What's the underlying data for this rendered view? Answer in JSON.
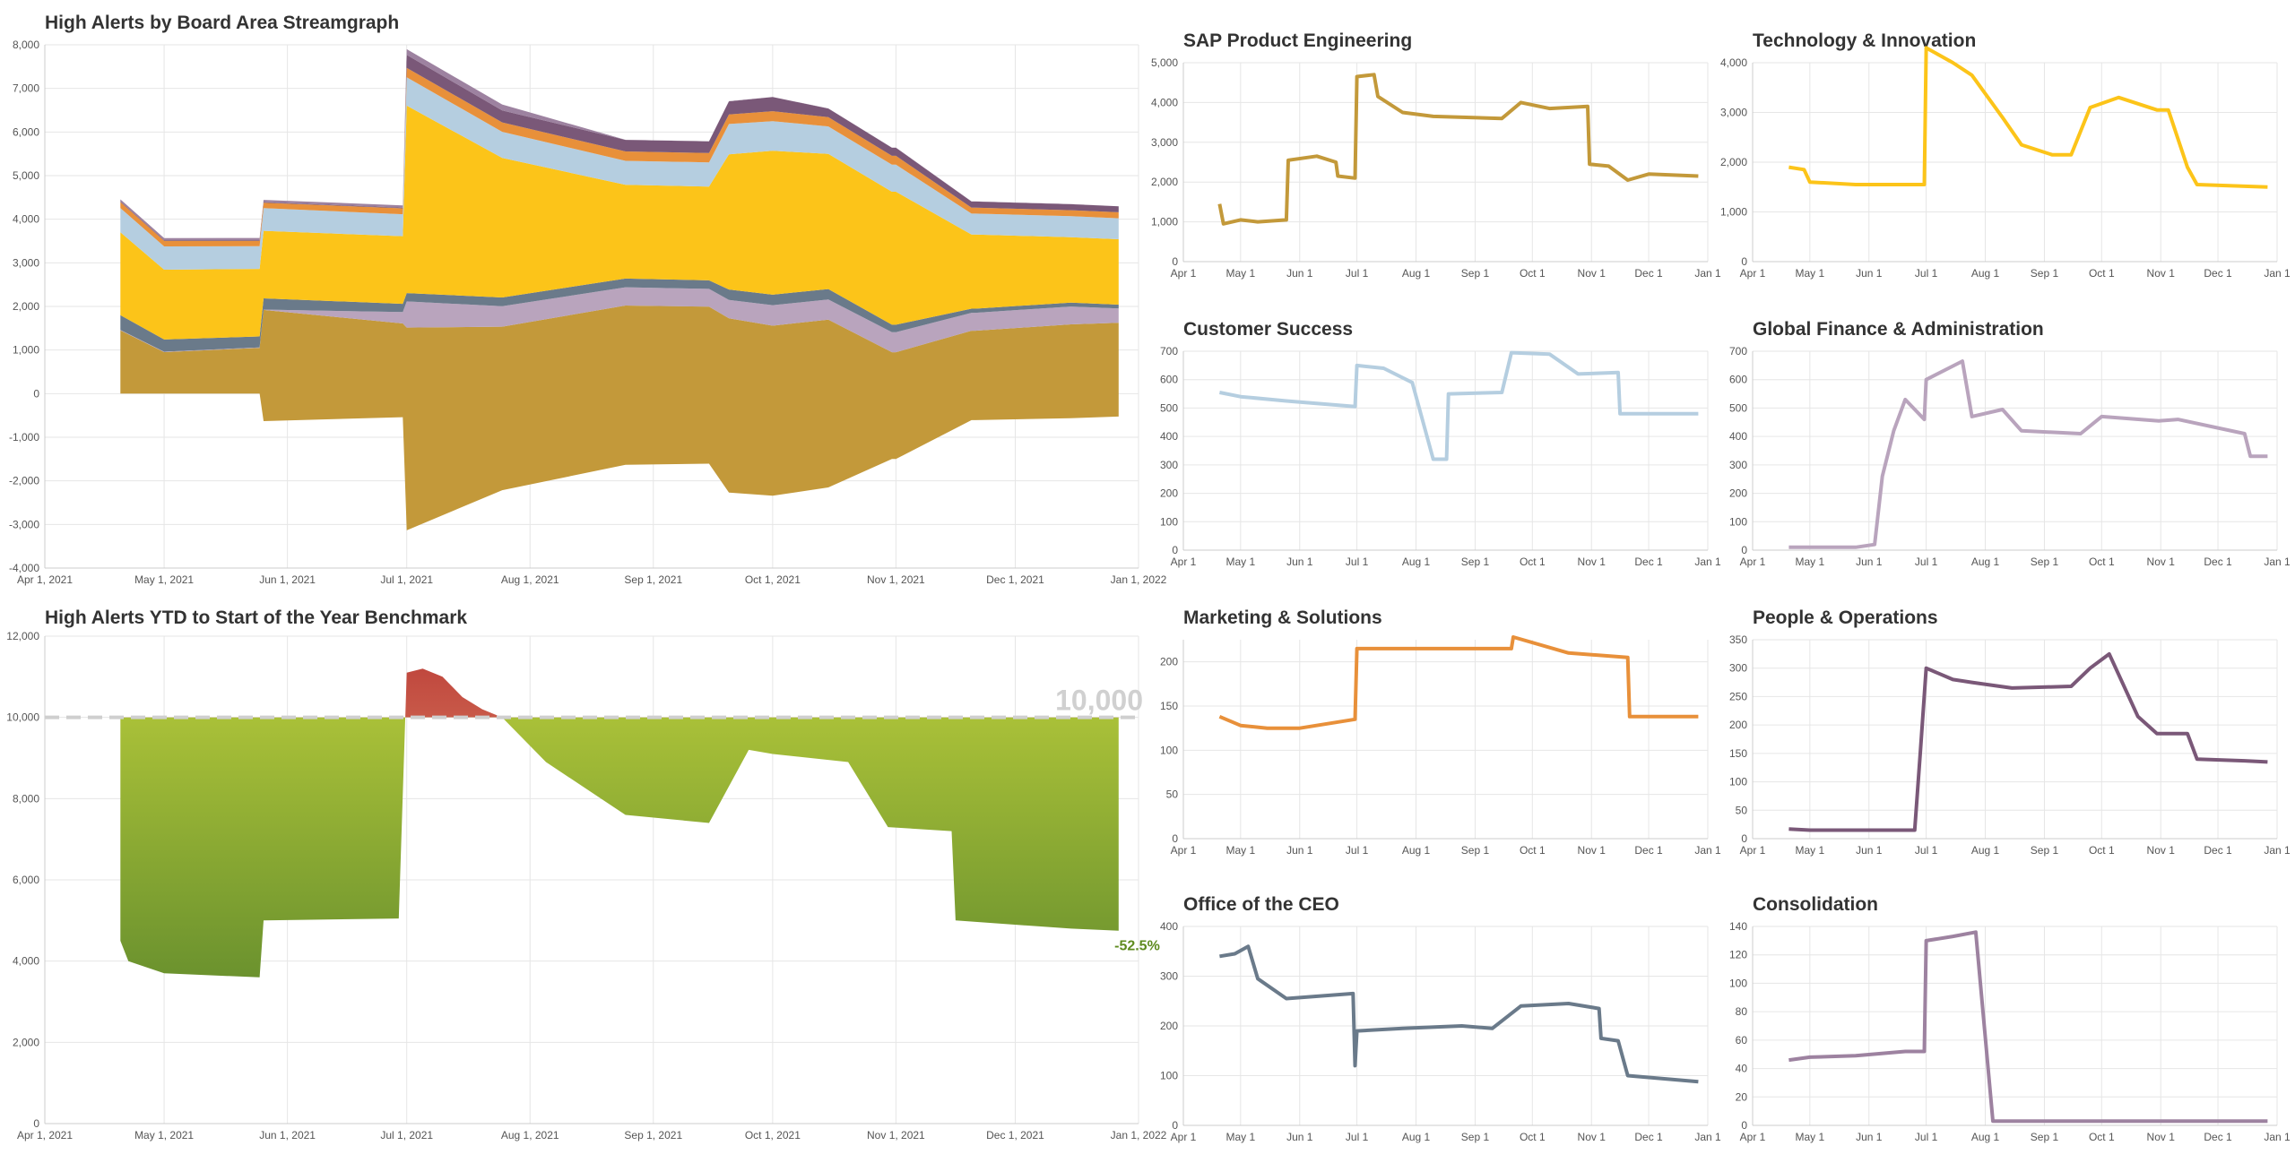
{
  "chart_data": [
    {
      "id": "stream",
      "type": "area",
      "title": "High Alerts by Board Area Streamgraph",
      "x_ticks": [
        "Apr 1, 2021",
        "May 1, 2021",
        "Jun 1, 2021",
        "Jul 1, 2021",
        "Aug 1, 2021",
        "Sep 1, 2021",
        "Oct 1, 2021",
        "Nov 1, 2021",
        "Dec 1, 2021",
        "Jan 1, 2022"
      ],
      "y_ticks": [
        "8,000",
        "7,000",
        "6,000",
        "5,000",
        "4,000",
        "3,000",
        "2,000",
        "1,000",
        "0",
        "-1,000",
        "-2,000",
        "-3,000",
        "-4,000"
      ],
      "ylim": [
        -4000,
        8000
      ],
      "grid": true,
      "legend": "none",
      "x": [
        "2021-04-20",
        "2021-05-01",
        "2021-05-25",
        "2021-05-26",
        "2021-06-30",
        "2021-07-01",
        "2021-07-25",
        "2021-08-25",
        "2021-09-15",
        "2021-09-20",
        "2021-10-01",
        "2021-10-15",
        "2021-10-31",
        "2021-11-01",
        "2021-11-20",
        "2021-11-21",
        "2021-12-15",
        "2021-12-27"
      ],
      "series": [
        {
          "color": "#c3993a",
          "values": [
            1450,
            950,
            1050,
            2550,
            2150,
            4650,
            3750,
            3650,
            3600,
            4000,
            3900,
            3850,
            2450,
            2450,
            2050,
            2050,
            2150,
            2150
          ]
        },
        {
          "color": "#b9a4bd",
          "values": [
            10,
            10,
            10,
            10,
            260,
            600,
            470,
            420,
            410,
            420,
            470,
            460,
            460,
            460,
            410,
            410,
            410,
            330
          ]
        },
        {
          "color": "#6a7a8a",
          "values": [
            340,
            280,
            250,
            255,
            190,
            190,
            200,
            200,
            195,
            240,
            240,
            240,
            170,
            170,
            95,
            95,
            90,
            88
          ]
        },
        {
          "color": "#fcc419",
          "values": [
            1900,
            1600,
            1550,
            1550,
            1550,
            4300,
            3200,
            2150,
            2150,
            3100,
            3300,
            3100,
            3050,
            3050,
            1700,
            1700,
            1500,
            1500
          ]
        },
        {
          "color": "#b5cee0",
          "values": [
            555,
            535,
            520,
            520,
            505,
            650,
            600,
            550,
            555,
            695,
            680,
            630,
            620,
            620,
            480,
            480,
            480,
            480
          ]
        },
        {
          "color": "#e8903a",
          "values": [
            138,
            128,
            125,
            125,
            135,
            215,
            215,
            215,
            215,
            220,
            228,
            210,
            205,
            205,
            138,
            138,
            138,
            138
          ]
        },
        {
          "color": "#7a5878",
          "values": [
            17,
            15,
            15,
            15,
            15,
            300,
            275,
            265,
            268,
            300,
            325,
            200,
            185,
            185,
            140,
            140,
            137,
            135
          ]
        },
        {
          "color": "#9d82a0",
          "values": [
            46,
            48,
            49,
            49,
            52,
            130,
            136,
            3,
            3,
            3,
            3,
            3,
            3,
            3,
            3,
            3,
            3,
            3
          ]
        }
      ]
    },
    {
      "id": "benchmark",
      "type": "area",
      "title": "High Alerts YTD to Start of the Year Benchmark",
      "x_ticks": [
        "Apr 1, 2021",
        "May 1, 2021",
        "Jun 1, 2021",
        "Jul 1, 2021",
        "Aug 1, 2021",
        "Sep 1, 2021",
        "Oct 1, 2021",
        "Nov 1, 2021",
        "Dec 1, 2021",
        "Jan 1, 2022"
      ],
      "y_ticks": [
        "12,000",
        "10,000",
        "8,000",
        "6,000",
        "4,000",
        "2,000",
        "0"
      ],
      "ylim": [
        0,
        12000
      ],
      "baseline": 10000,
      "baseline_label": "10,000",
      "end_label": "-52.5%",
      "grid": true,
      "x": [
        "2021-04-20",
        "2021-04-22",
        "2021-05-01",
        "2021-05-25",
        "2021-05-26",
        "2021-06-29",
        "2021-07-01",
        "2021-07-05",
        "2021-07-10",
        "2021-07-15",
        "2021-07-20",
        "2021-07-25",
        "2021-08-05",
        "2021-08-25",
        "2021-09-15",
        "2021-09-25",
        "2021-10-01",
        "2021-10-20",
        "2021-10-30",
        "2021-11-15",
        "2021-11-16",
        "2021-12-15",
        "2021-12-27"
      ],
      "values": [
        4500,
        4000,
        3700,
        3600,
        5000,
        5050,
        11100,
        11200,
        11000,
        10500,
        10200,
        10000,
        8900,
        7600,
        7400,
        9200,
        9100,
        8900,
        7300,
        7200,
        5000,
        4800,
        4750
      ]
    },
    {
      "id": "m1",
      "type": "line",
      "title": "SAP Product Engineering",
      "color": "#c3993a",
      "ylim": [
        0,
        5000
      ],
      "y_ticks": [
        "5,000",
        "4,000",
        "3,000",
        "2,000",
        "1,000",
        "0"
      ],
      "x_ticks": [
        "Apr 1",
        "May 1",
        "Jun 1",
        "Jul 1",
        "Aug 1",
        "Sep 1",
        "Oct 1",
        "Nov 1",
        "Dec 1",
        "Jan 1"
      ],
      "x": [
        "2021-04-20",
        "2021-04-22",
        "2021-05-01",
        "2021-05-10",
        "2021-05-25",
        "2021-05-26",
        "2021-06-10",
        "2021-06-20",
        "2021-06-21",
        "2021-06-30",
        "2021-07-01",
        "2021-07-10",
        "2021-07-12",
        "2021-07-25",
        "2021-08-10",
        "2021-09-15",
        "2021-09-25",
        "2021-10-10",
        "2021-10-30",
        "2021-10-31",
        "2021-11-10",
        "2021-11-20",
        "2021-12-01",
        "2021-12-27"
      ],
      "values": [
        1450,
        950,
        1050,
        1000,
        1050,
        2550,
        2650,
        2500,
        2150,
        2100,
        4650,
        4700,
        4150,
        3750,
        3650,
        3600,
        4000,
        3850,
        3900,
        2450,
        2400,
        2050,
        2200,
        2150
      ]
    },
    {
      "id": "m2",
      "type": "line",
      "title": "Technology & Innovation",
      "color": "#fcc419",
      "ylim": [
        0,
        4000
      ],
      "y_ticks": [
        "4,000",
        "3,000",
        "2,000",
        "1,000",
        "0"
      ],
      "x_ticks": [
        "Apr 1",
        "May 1",
        "Jun 1",
        "Jul 1",
        "Aug 1",
        "Sep 1",
        "Oct 1",
        "Nov 1",
        "Dec 1",
        "Jan 1"
      ],
      "x": [
        "2021-04-20",
        "2021-04-28",
        "2021-05-01",
        "2021-05-25",
        "2021-06-30",
        "2021-07-01",
        "2021-07-15",
        "2021-07-25",
        "2021-08-10",
        "2021-08-20",
        "2021-09-05",
        "2021-09-15",
        "2021-09-25",
        "2021-10-10",
        "2021-10-30",
        "2021-11-05",
        "2021-11-15",
        "2021-11-20",
        "2021-12-27"
      ],
      "values": [
        1900,
        1850,
        1600,
        1550,
        1550,
        4300,
        4000,
        3750,
        2900,
        2350,
        2150,
        2150,
        3100,
        3300,
        3050,
        3050,
        1900,
        1550,
        1500
      ]
    },
    {
      "id": "m3",
      "type": "line",
      "title": "Customer Success",
      "color": "#b5cee0",
      "ylim": [
        0,
        700
      ],
      "y_ticks": [
        "700",
        "600",
        "500",
        "400",
        "300",
        "200",
        "100",
        "0"
      ],
      "x_ticks": [
        "Apr 1",
        "May 1",
        "Jun 1",
        "Jul 1",
        "Aug 1",
        "Sep 1",
        "Oct 1",
        "Nov 1",
        "Dec 1",
        "Jan 1"
      ],
      "x": [
        "2021-04-20",
        "2021-05-01",
        "2021-05-25",
        "2021-06-30",
        "2021-07-01",
        "2021-07-15",
        "2021-07-30",
        "2021-08-10",
        "2021-08-17",
        "2021-08-18",
        "2021-09-15",
        "2021-09-20",
        "2021-10-10",
        "2021-10-25",
        "2021-11-15",
        "2021-11-16",
        "2021-12-27"
      ],
      "values": [
        555,
        540,
        525,
        505,
        650,
        640,
        590,
        320,
        320,
        550,
        555,
        695,
        690,
        620,
        625,
        480,
        480
      ]
    },
    {
      "id": "m4",
      "type": "line",
      "title": "Global Finance & Administration",
      "color": "#b9a4bd",
      "ylim": [
        0,
        700
      ],
      "y_ticks": [
        "700",
        "600",
        "500",
        "400",
        "300",
        "200",
        "100",
        "0"
      ],
      "x_ticks": [
        "Apr 1",
        "May 1",
        "Jun 1",
        "Jul 1",
        "Aug 1",
        "Sep 1",
        "Oct 1",
        "Nov 1",
        "Dec 1",
        "Jan 1"
      ],
      "x": [
        "2021-04-20",
        "2021-05-01",
        "2021-05-25",
        "2021-06-04",
        "2021-06-08",
        "2021-06-14",
        "2021-06-20",
        "2021-06-30",
        "2021-07-01",
        "2021-07-20",
        "2021-07-25",
        "2021-08-10",
        "2021-08-20",
        "2021-09-20",
        "2021-10-01",
        "2021-10-31",
        "2021-11-10",
        "2021-12-15",
        "2021-12-18",
        "2021-12-27"
      ],
      "values": [
        10,
        10,
        10,
        20,
        260,
        420,
        530,
        460,
        600,
        665,
        470,
        495,
        420,
        410,
        470,
        455,
        460,
        410,
        330,
        330
      ]
    },
    {
      "id": "m5",
      "type": "line",
      "title": "Marketing & Solutions",
      "color": "#e8903a",
      "ylim": [
        0,
        225
      ],
      "y_ticks": [
        "200",
        "150",
        "100",
        "50",
        "0"
      ],
      "x_ticks": [
        "Apr 1",
        "May 1",
        "Jun 1",
        "Jul 1",
        "Aug 1",
        "Sep 1",
        "Oct 1",
        "Nov 1",
        "Dec 1",
        "Jan 1"
      ],
      "x": [
        "2021-04-20",
        "2021-05-01",
        "2021-05-15",
        "2021-06-01",
        "2021-06-30",
        "2021-07-01",
        "2021-08-10",
        "2021-09-20",
        "2021-09-21",
        "2021-10-20",
        "2021-11-20",
        "2021-11-21",
        "2021-12-27"
      ],
      "values": [
        138,
        128,
        125,
        125,
        135,
        215,
        215,
        215,
        228,
        210,
        205,
        138,
        138
      ]
    },
    {
      "id": "m6",
      "type": "line",
      "title": "People & Operations",
      "color": "#7a5878",
      "ylim": [
        0,
        350
      ],
      "y_ticks": [
        "350",
        "300",
        "250",
        "200",
        "150",
        "100",
        "50",
        "0"
      ],
      "x_ticks": [
        "Apr 1",
        "May 1",
        "Jun 1",
        "Jul 1",
        "Aug 1",
        "Sep 1",
        "Oct 1",
        "Nov 1",
        "Dec 1",
        "Jan 1"
      ],
      "x": [
        "2021-04-20",
        "2021-05-01",
        "2021-06-25",
        "2021-06-28",
        "2021-07-01",
        "2021-07-15",
        "2021-07-25",
        "2021-08-15",
        "2021-09-15",
        "2021-09-25",
        "2021-10-05",
        "2021-10-20",
        "2021-10-30",
        "2021-11-15",
        "2021-11-20",
        "2021-12-15",
        "2021-12-27"
      ],
      "values": [
        17,
        15,
        15,
        155,
        300,
        280,
        275,
        265,
        268,
        300,
        325,
        215,
        185,
        185,
        140,
        137,
        135
      ]
    },
    {
      "id": "m7",
      "type": "line",
      "title": "Office of the CEO",
      "color": "#6a7a8a",
      "ylim": [
        0,
        400
      ],
      "y_ticks": [
        "400",
        "300",
        "200",
        "100",
        "0"
      ],
      "x_ticks": [
        "Apr 1",
        "May 1",
        "Jun 1",
        "Jul 1",
        "Aug 1",
        "Sep 1",
        "Oct 1",
        "Nov 1",
        "Dec 1",
        "Jan 1"
      ],
      "x": [
        "2021-04-20",
        "2021-04-28",
        "2021-05-05",
        "2021-05-10",
        "2021-05-25",
        "2021-06-29",
        "2021-06-30",
        "2021-07-01",
        "2021-07-25",
        "2021-08-25",
        "2021-09-10",
        "2021-09-25",
        "2021-10-20",
        "2021-11-05",
        "2021-11-06",
        "2021-11-15",
        "2021-11-20",
        "2021-12-27"
      ],
      "values": [
        340,
        345,
        360,
        295,
        255,
        265,
        120,
        190,
        195,
        200,
        195,
        240,
        245,
        235,
        175,
        170,
        100,
        88
      ]
    },
    {
      "id": "m8",
      "type": "line",
      "title": "Consolidation",
      "color": "#9d82a0",
      "ylim": [
        0,
        140
      ],
      "y_ticks": [
        "140",
        "120",
        "100",
        "80",
        "60",
        "40",
        "20",
        "0"
      ],
      "x_ticks": [
        "Apr 1",
        "May 1",
        "Jun 1",
        "Jul 1",
        "Aug 1",
        "Sep 1",
        "Oct 1",
        "Nov 1",
        "Dec 1",
        "Jan 1"
      ],
      "x": [
        "2021-04-20",
        "2021-05-01",
        "2021-05-25",
        "2021-06-20",
        "2021-06-30",
        "2021-07-01",
        "2021-07-15",
        "2021-07-27",
        "2021-08-05",
        "2021-12-27"
      ],
      "values": [
        46,
        48,
        49,
        52,
        52,
        130,
        133,
        136,
        3,
        3
      ]
    }
  ]
}
